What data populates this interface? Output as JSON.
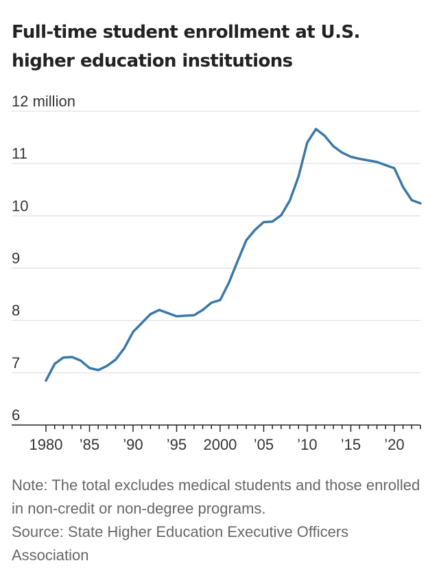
{
  "title": "Full-time student enrollment at U.S. higher education institutions",
  "note": "Note: The total excludes medical students and those enrolled in non-credit or non-degree programs.",
  "source": "Source: State Higher Education Executive Officers Association",
  "colors": {
    "line": "#3a78a8",
    "grid": "#d9d9d9",
    "axis": "#222222"
  },
  "chart_data": {
    "type": "line",
    "title": "Full-time student enrollment at U.S. higher education institutions",
    "xlabel": "",
    "ylabel": "",
    "xlim": [
      1980,
      2023
    ],
    "ylim": [
      6,
      12
    ],
    "grid": true,
    "y_ticks": [
      {
        "value": 12,
        "label": "12 million"
      },
      {
        "value": 11,
        "label": "11"
      },
      {
        "value": 10,
        "label": "10"
      },
      {
        "value": 9,
        "label": "9"
      },
      {
        "value": 8,
        "label": "8"
      },
      {
        "value": 7,
        "label": "7"
      },
      {
        "value": 6,
        "label": "6"
      }
    ],
    "x_ticks": [
      {
        "value": 1980,
        "label": "1980"
      },
      {
        "value": 1985,
        "label": "’85"
      },
      {
        "value": 1990,
        "label": "’90"
      },
      {
        "value": 1995,
        "label": "’95"
      },
      {
        "value": 2000,
        "label": "2000"
      },
      {
        "value": 2005,
        "label": "’05"
      },
      {
        "value": 2010,
        "label": "’10"
      },
      {
        "value": 2015,
        "label": "’15"
      },
      {
        "value": 2020,
        "label": "’20"
      }
    ],
    "series": [
      {
        "x": [
          1980,
          1981,
          1982,
          1983,
          1984,
          1985,
          1986,
          1987,
          1988,
          1989,
          1990,
          1991,
          1992,
          1993,
          1994,
          1995,
          1996,
          1997,
          1998,
          1999,
          2000,
          2001,
          2002,
          2003,
          2004,
          2005,
          2006,
          2007,
          2008,
          2009,
          2010,
          2011,
          2012,
          2013,
          2014,
          2015,
          2016,
          2017,
          2018,
          2019,
          2020,
          2021,
          2022,
          2023
        ],
        "values": [
          6.85,
          7.17,
          7.29,
          7.3,
          7.23,
          7.09,
          7.05,
          7.13,
          7.25,
          7.47,
          7.78,
          7.95,
          8.12,
          8.2,
          8.14,
          8.08,
          8.09,
          8.1,
          8.2,
          8.34,
          8.39,
          8.72,
          9.13,
          9.53,
          9.73,
          9.88,
          9.89,
          10.01,
          10.29,
          10.75,
          11.4,
          11.66,
          11.53,
          11.33,
          11.21,
          11.13,
          11.09,
          11.06,
          11.03,
          10.97,
          10.91,
          10.55,
          10.3,
          10.24
        ]
      }
    ]
  }
}
